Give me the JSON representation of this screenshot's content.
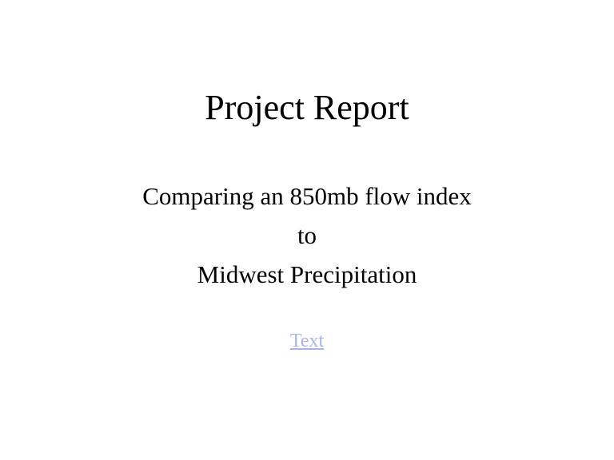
{
  "slide": {
    "title": "Project Report",
    "subtitle_lines": [
      "Comparing an 850mb flow index",
      "to",
      "Midwest Precipitation"
    ],
    "link_text": "Text"
  },
  "colors": {
    "background": "#ffffff",
    "text": "#000000",
    "link": "#a9b4e8"
  }
}
